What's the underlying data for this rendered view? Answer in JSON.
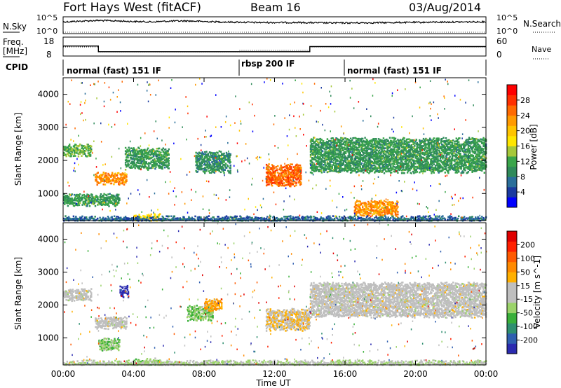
{
  "header": {
    "title": "Fort Hays West (fitACF)",
    "beam": "Beam 16",
    "date": "03/Aug/2014"
  },
  "noise_panel": {
    "left_label": "N.Sky",
    "left_ticks": [
      "10^5",
      "10^0"
    ],
    "right_ticks": [
      "10^5",
      "10^0"
    ],
    "right_label": "N.Search"
  },
  "freq_panel": {
    "left_label_top": "Freq.",
    "left_label_bottom": "[MHz]",
    "left_ticks": [
      "18",
      "8"
    ],
    "right_ticks": [
      "60",
      "0"
    ],
    "right_label": "Nave"
  },
  "cpid_panel": {
    "label": "CPID",
    "segments": [
      {
        "label": "normal (fast) 151 IF",
        "start_hour": 0,
        "end_hour": 10
      },
      {
        "label": "rbsp 200 IF",
        "start_hour": 10,
        "end_hour": 16
      },
      {
        "label": "normal (fast) 151 IF",
        "start_hour": 16,
        "end_hour": 24
      }
    ]
  },
  "x_axis": {
    "label": "Time UT",
    "ticks": [
      "00:00",
      "04:00",
      "08:00",
      "12:00",
      "16:00",
      "20:00",
      "00:00"
    ]
  },
  "power_colorbar": {
    "title": "Power [dB]",
    "ticks": [
      "28",
      "24",
      "20",
      "16",
      "12",
      "8",
      "4"
    ],
    "colors": [
      "#0000ff",
      "#1a3aa0",
      "#2a6e9a",
      "#2f8a5a",
      "#3aa54a",
      "#a6c83a",
      "#ffe600",
      "#ffc400",
      "#ff9a00",
      "#ff6a00",
      "#ff3000",
      "#ff0000"
    ]
  },
  "velocity_colorbar": {
    "title": "Velocity [m s^-1]",
    "ticks": [
      "200",
      "100",
      "50",
      "15",
      "-15",
      "-50",
      "-100",
      "-200"
    ],
    "colors": [
      "#2b2bb0",
      "#2f5fb0",
      "#2f8f70",
      "#3ab03a",
      "#9bd36a",
      "#bfbfbf",
      "#bfbfbf",
      "#ffb000",
      "#ff8a00",
      "#ff5a00",
      "#ff2000",
      "#e00000"
    ]
  },
  "chart_data": [
    {
      "type": "line",
      "title": "Fort Hays West (fitACF) Beam 16",
      "xlabel": "Time UT",
      "xlim": [
        0,
        24
      ],
      "series": [
        {
          "name": "N.Sky",
          "x": [
            0,
            1,
            2,
            3,
            4,
            5,
            6,
            7,
            8,
            9,
            10,
            11,
            12,
            13,
            14,
            15,
            16,
            17,
            18,
            19,
            20,
            21,
            22,
            23,
            24
          ],
          "values": [
            3000,
            5000,
            8000,
            6000,
            4000,
            3000,
            5000,
            6000,
            4000,
            3000,
            2500,
            2000,
            2000,
            2000,
            1800,
            1500,
            1500,
            1600,
            1800,
            2000,
            2200,
            2500,
            2800,
            3000,
            3200
          ]
        }
      ]
    },
    {
      "type": "line",
      "title": "",
      "xlabel": "Time UT",
      "xlim": [
        0,
        24
      ],
      "series": [
        {
          "name": "Freq. [MHz]",
          "x": [
            0,
            2,
            2,
            10,
            10,
            14,
            14,
            24
          ],
          "values": [
            13.3,
            13.3,
            10.3,
            10.3,
            10.3,
            10.3,
            13.0,
            13.0
          ]
        },
        {
          "name": "Nave",
          "x": [
            0,
            2,
            2,
            10,
            10,
            14,
            14,
            24
          ],
          "values": [
            29,
            29,
            13,
            13,
            18,
            18,
            29,
            29
          ]
        }
      ]
    },
    {
      "type": "heatmap",
      "title": "Power [dB]",
      "xlabel": "Time UT",
      "ylabel": "Slant Range [km]",
      "xlim": [
        0,
        24
      ],
      "ylim": [
        180,
        4500
      ],
      "yticks": [
        "1000",
        "2000",
        "3000",
        "4000"
      ],
      "colorbar_range": [
        0,
        30
      ],
      "features": [
        {
          "t0": 0.0,
          "t1": 1.6,
          "r0": 2200,
          "r1": 2500,
          "value": 12
        },
        {
          "t0": 1.8,
          "t1": 3.6,
          "r0": 1350,
          "r1": 1650,
          "value": 22
        },
        {
          "t0": 0.0,
          "t1": 3.2,
          "r0": 700,
          "r1": 1000,
          "value": 10
        },
        {
          "t0": 3.5,
          "t1": 6.0,
          "r0": 1800,
          "r1": 2400,
          "value": 10
        },
        {
          "t0": 4.0,
          "t1": 5.5,
          "r0": 200,
          "r1": 400,
          "value": 18
        },
        {
          "t0": 7.5,
          "t1": 9.5,
          "r0": 1700,
          "r1": 2300,
          "value": 9
        },
        {
          "t0": 11.5,
          "t1": 13.5,
          "r0": 1300,
          "r1": 1900,
          "value": 24
        },
        {
          "t0": 14.0,
          "t1": 24.0,
          "r0": 1700,
          "r1": 2700,
          "value": 10
        },
        {
          "t0": 16.5,
          "t1": 19.0,
          "r0": 400,
          "r1": 800,
          "value": 22
        },
        {
          "t0": 0.0,
          "t1": 24.0,
          "r0": 180,
          "r1": 320,
          "value": 6
        }
      ]
    },
    {
      "type": "heatmap",
      "title": "Velocity [m s^-1]",
      "xlabel": "Time UT",
      "ylabel": "Slant Range [km]",
      "xlim": [
        0,
        24
      ],
      "ylim": [
        180,
        4500
      ],
      "yticks": [
        "1000",
        "2000",
        "3000",
        "4000"
      ],
      "colorbar_range": [
        -200,
        200
      ],
      "features": [
        {
          "t0": 0.0,
          "t1": 1.6,
          "r0": 2200,
          "r1": 2500,
          "value": 0
        },
        {
          "t0": 1.8,
          "t1": 3.6,
          "r0": 1350,
          "r1": 1650,
          "value": 0
        },
        {
          "t0": 3.2,
          "t1": 3.7,
          "r0": 2300,
          "r1": 2600,
          "value": -200
        },
        {
          "t0": 2.0,
          "t1": 3.2,
          "r0": 700,
          "r1": 1000,
          "value": -60
        },
        {
          "t0": 4.0,
          "t1": 5.5,
          "r0": 200,
          "r1": 400,
          "value": -60
        },
        {
          "t0": 7.0,
          "t1": 8.5,
          "r0": 1600,
          "r1": 2000,
          "value": -60
        },
        {
          "t0": 8.0,
          "t1": 9.0,
          "r0": 1900,
          "r1": 2200,
          "value": 60
        },
        {
          "t0": 11.5,
          "t1": 14.0,
          "r0": 1300,
          "r1": 1900,
          "value": 30
        },
        {
          "t0": 14.0,
          "t1": 24.0,
          "r0": 1700,
          "r1": 2700,
          "value": 0
        },
        {
          "t0": 0.0,
          "t1": 24.0,
          "r0": 180,
          "r1": 320,
          "value": -30
        }
      ]
    }
  ]
}
